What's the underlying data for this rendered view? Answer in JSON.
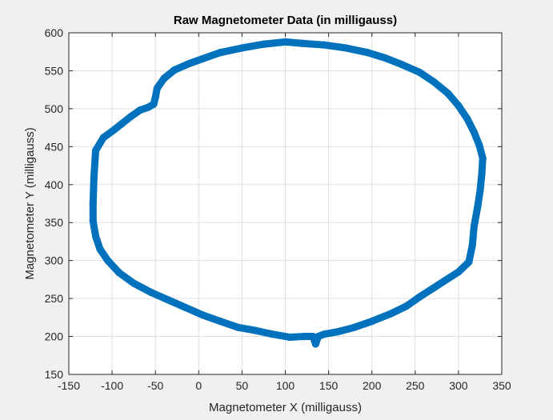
{
  "chart_data": {
    "type": "scatter",
    "title": "Raw Magnetometer Data (in milligauss)",
    "xlabel": "Magnetometer X (milligauss)",
    "ylabel": "Magnetometer Y (milligauss)",
    "xlim": [
      -150,
      350
    ],
    "ylim": [
      150,
      600
    ],
    "xticks": [
      -150,
      -100,
      -50,
      0,
      50,
      100,
      150,
      200,
      250,
      300,
      350
    ],
    "yticks": [
      150,
      200,
      250,
      300,
      350,
      400,
      450,
      500,
      550,
      600
    ],
    "xtick_labels": [
      "-150",
      "-100",
      "-50",
      "0",
      "50",
      "100",
      "150",
      "200",
      "250",
      "300",
      "350"
    ],
    "ytick_labels": [
      "150",
      "200",
      "250",
      "300",
      "350",
      "400",
      "450",
      "500",
      "550",
      "600"
    ],
    "grid": true,
    "legend": "none",
    "marker_color": "#0072BD",
    "series": [
      {
        "points": [
          [
            -122,
            375
          ],
          [
            -121,
            410
          ],
          [
            -119,
            445
          ],
          [
            -110,
            462
          ],
          [
            -98,
            472
          ],
          [
            -88,
            481
          ],
          [
            -78,
            490
          ],
          [
            -68,
            498
          ],
          [
            -58,
            502
          ],
          [
            -52,
            506
          ],
          [
            -50,
            515
          ],
          [
            -48,
            527
          ],
          [
            -40,
            540
          ],
          [
            -28,
            551
          ],
          [
            -12,
            559
          ],
          [
            5,
            566
          ],
          [
            25,
            574
          ],
          [
            50,
            580
          ],
          [
            75,
            585
          ],
          [
            100,
            588
          ],
          [
            120,
            586
          ],
          [
            145,
            584
          ],
          [
            170,
            580
          ],
          [
            195,
            574
          ],
          [
            215,
            567
          ],
          [
            235,
            558
          ],
          [
            255,
            548
          ],
          [
            272,
            535
          ],
          [
            288,
            520
          ],
          [
            300,
            504
          ],
          [
            310,
            487
          ],
          [
            318,
            469
          ],
          [
            324,
            452
          ],
          [
            328,
            435
          ],
          [
            327,
            415
          ],
          [
            325,
            392
          ],
          [
            322,
            370
          ],
          [
            318,
            345
          ],
          [
            316,
            320
          ],
          [
            312,
            298
          ],
          [
            300,
            285
          ],
          [
            285,
            274
          ],
          [
            270,
            263
          ],
          [
            255,
            252
          ],
          [
            240,
            240
          ],
          [
            222,
            230
          ],
          [
            200,
            220
          ],
          [
            180,
            212
          ],
          [
            160,
            206
          ],
          [
            145,
            203
          ],
          [
            138,
            200
          ],
          [
            135,
            190
          ],
          [
            132,
            200
          ],
          [
            122,
            200
          ],
          [
            105,
            199
          ],
          [
            85,
            203
          ],
          [
            65,
            208
          ],
          [
            45,
            212
          ],
          [
            25,
            220
          ],
          [
            5,
            228
          ],
          [
            -15,
            238
          ],
          [
            -35,
            248
          ],
          [
            -55,
            258
          ],
          [
            -75,
            270
          ],
          [
            -92,
            284
          ],
          [
            -105,
            300
          ],
          [
            -114,
            315
          ],
          [
            -119,
            332
          ],
          [
            -122,
            352
          ]
        ]
      }
    ]
  }
}
